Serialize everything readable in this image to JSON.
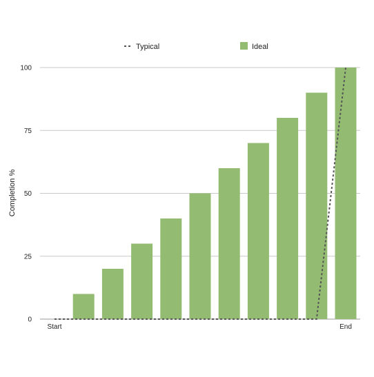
{
  "chart_data": {
    "type": "bar",
    "title": "",
    "xlabel": "",
    "ylabel": "Completion %",
    "ylim": [
      0,
      100
    ],
    "y_ticks": [
      "0",
      "25",
      "50",
      "75",
      "100"
    ],
    "grid": true,
    "legend_position": "top",
    "x_tick_labels": {
      "start": "Start",
      "end": "End"
    },
    "series": [
      {
        "name": "Typical",
        "type": "line",
        "style": "dashed",
        "color": "#555555",
        "points": [
          {
            "x": 0,
            "y": 0
          },
          {
            "x": 9,
            "y": 0
          },
          {
            "x": 10,
            "y": 100
          }
        ]
      },
      {
        "name": "Ideal",
        "type": "bar",
        "color": "#93bb72",
        "values": [
          0,
          10,
          20,
          30,
          40,
          50,
          60,
          70,
          80,
          90,
          100
        ]
      }
    ]
  }
}
